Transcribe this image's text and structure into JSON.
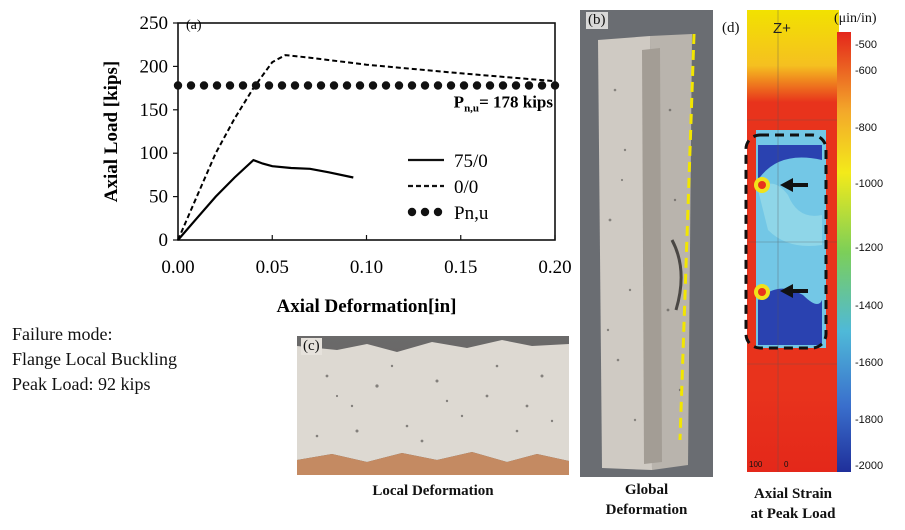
{
  "chart_data": {
    "type": "line",
    "panel_label": "(a)",
    "xlabel": "Axial Deformation[in]",
    "ylabel": "Axial Load [kips]",
    "xlim": [
      0.0,
      0.2
    ],
    "ylim": [
      0,
      250
    ],
    "xticks": [
      "0.00",
      "0.05",
      "0.10",
      "0.15",
      "0.20"
    ],
    "yticks": [
      "0",
      "50",
      "100",
      "150",
      "200",
      "250"
    ],
    "series": [
      {
        "name": "75/0",
        "style": "solid",
        "color": "#000000",
        "x": [
          0.0,
          0.01,
          0.02,
          0.03,
          0.04,
          0.045,
          0.05,
          0.06,
          0.07,
          0.08,
          0.093
        ],
        "y": [
          0,
          25,
          50,
          72,
          92,
          88,
          85,
          83,
          82,
          78,
          72
        ]
      },
      {
        "name": "0/0",
        "style": "dashed",
        "color": "#000000",
        "x": [
          0.0,
          0.01,
          0.02,
          0.03,
          0.04,
          0.05,
          0.057,
          0.07,
          0.1,
          0.15,
          0.2
        ],
        "y": [
          0,
          50,
          100,
          140,
          175,
          205,
          213,
          210,
          202,
          192,
          183
        ]
      },
      {
        "name": "Pn,u",
        "style": "dotted",
        "color": "#000000",
        "x": [
          0.0,
          0.2
        ],
        "y": [
          178,
          178
        ]
      }
    ],
    "annotation": {
      "text_main": "P",
      "text_sub": "n,u",
      "text_rest": "= 178 kips",
      "x": 0.2,
      "y": 178
    },
    "legend_position": "center-right"
  },
  "failure": {
    "line1": "Failure mode:",
    "line2": "Flange Local Buckling",
    "line3": "Peak Load: 92 kips"
  },
  "panels": {
    "b": {
      "label": "(b)",
      "caption1": "Global",
      "caption2": "Deformation"
    },
    "c": {
      "label": "(c)",
      "caption": "Local Deformation"
    },
    "d": {
      "label": "(d)",
      "axis_label": "Z+",
      "caption1": "Axial Strain",
      "caption2": "at Peak Load"
    }
  },
  "colorbar": {
    "unit": "(μin/in)",
    "ticks": [
      "-500",
      "-600",
      "-800",
      "-1000",
      "-1200",
      "-1400",
      "-1600",
      "-1800",
      "-2000"
    ],
    "bottom_marks": [
      "100",
      "0"
    ]
  },
  "colors": {
    "guide_line": "#f2e600",
    "strain_high": "#e8311a",
    "strain_mid": "#f5e600",
    "strain_low": "#2b3fa8"
  }
}
